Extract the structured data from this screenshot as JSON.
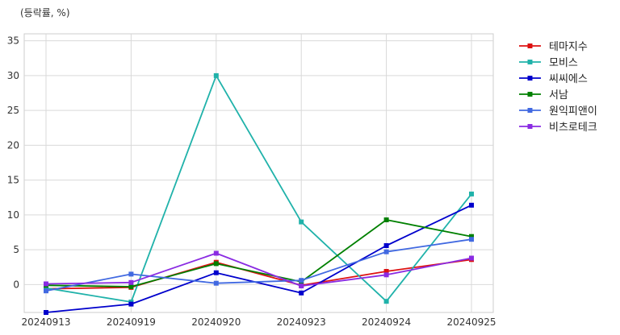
{
  "chart_data": {
    "type": "line",
    "title": "",
    "unit_label": "(등락률, %)",
    "xlabel": "",
    "ylabel": "",
    "categories": [
      "20240913",
      "20240919",
      "20240920",
      "20240923",
      "20240924",
      "20240925"
    ],
    "ylim": [
      -4,
      36
    ],
    "yticks": [
      0,
      5,
      10,
      15,
      20,
      25,
      30,
      35
    ],
    "grid": true,
    "legend_position": "right",
    "series": [
      {
        "name": "테마지수",
        "color": "#dd1111",
        "values": [
          -0.6,
          -0.4,
          3.2,
          -0.1,
          1.9,
          3.6
        ]
      },
      {
        "name": "모비스",
        "color": "#20b2aa",
        "values": [
          -0.5,
          -2.5,
          30.0,
          9.0,
          -2.4,
          13.0
        ]
      },
      {
        "name": "씨씨에스",
        "color": "#0000cc",
        "values": [
          -4.0,
          -2.8,
          1.7,
          -1.2,
          5.6,
          11.4
        ]
      },
      {
        "name": "서남",
        "color": "#008000",
        "values": [
          -0.1,
          -0.3,
          3.0,
          0.4,
          9.3,
          6.9
        ]
      },
      {
        "name": "원익피앤이",
        "color": "#4169e1",
        "values": [
          -0.9,
          1.5,
          0.2,
          0.6,
          4.7,
          6.5
        ]
      },
      {
        "name": "비츠로테크",
        "color": "#8a2be2",
        "values": [
          0.1,
          0.3,
          4.5,
          -0.2,
          1.4,
          3.8
        ]
      }
    ]
  }
}
